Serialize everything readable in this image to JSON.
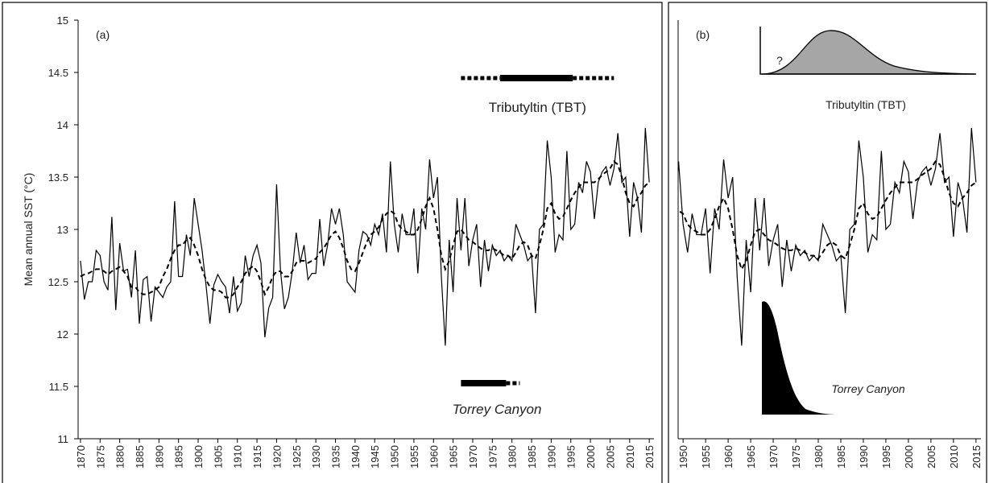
{
  "chart_data": [
    {
      "type": "line",
      "title": "(a)",
      "y_label": "Mean annual SST (°C)",
      "x": [
        1870,
        1871,
        1872,
        1873,
        1874,
        1875,
        1876,
        1877,
        1878,
        1879,
        1880,
        1881,
        1882,
        1883,
        1884,
        1885,
        1886,
        1887,
        1888,
        1889,
        1890,
        1891,
        1892,
        1893,
        1894,
        1895,
        1896,
        1897,
        1898,
        1899,
        1900,
        1901,
        1902,
        1903,
        1904,
        1905,
        1906,
        1907,
        1908,
        1909,
        1910,
        1911,
        1912,
        1913,
        1914,
        1915,
        1916,
        1917,
        1918,
        1919,
        1920,
        1921,
        1922,
        1923,
        1924,
        1925,
        1926,
        1927,
        1928,
        1929,
        1930,
        1931,
        1932,
        1933,
        1934,
        1935,
        1936,
        1937,
        1938,
        1939,
        1940,
        1941,
        1942,
        1943,
        1944,
        1945,
        1946,
        1947,
        1948,
        1949,
        1950,
        1951,
        1952,
        1953,
        1954,
        1955,
        1956,
        1957,
        1958,
        1959,
        1960,
        1961,
        1962,
        1963,
        1964,
        1965,
        1966,
        1967,
        1968,
        1969,
        1970,
        1971,
        1972,
        1973,
        1974,
        1975,
        1976,
        1977,
        1978,
        1979,
        1980,
        1981,
        1982,
        1983,
        1984,
        1985,
        1986,
        1987,
        1988,
        1989,
        1990,
        1991,
        1992,
        1993,
        1994,
        1995,
        1996,
        1997,
        1998,
        1999,
        2000,
        2001,
        2002,
        2003,
        2004,
        2005,
        2006,
        2007,
        2008,
        2009,
        2010,
        2011,
        2012,
        2013,
        2014,
        2015
      ],
      "series": [
        {
          "color": "#000000",
          "style": "solid",
          "values": [
            12.7,
            12.33,
            12.5,
            12.5,
            12.8,
            12.75,
            12.5,
            12.42,
            13.12,
            12.23,
            12.87,
            12.6,
            12.62,
            12.35,
            12.8,
            12.1,
            12.52,
            12.55,
            12.12,
            12.45,
            12.4,
            12.35,
            12.45,
            12.5,
            13.27,
            12.55,
            12.55,
            12.95,
            12.75,
            13.3,
            13.05,
            12.8,
            12.47,
            12.1,
            12.47,
            12.57,
            12.5,
            12.45,
            12.2,
            12.55,
            12.22,
            12.3,
            12.75,
            12.55,
            12.75,
            12.85,
            12.68,
            11.97,
            12.25,
            12.35,
            13.43,
            12.6,
            12.24,
            12.35,
            12.6,
            12.97,
            12.68,
            12.85,
            12.52,
            12.58,
            12.58,
            13.1,
            12.65,
            12.85,
            13.2,
            13.05,
            13.2,
            12.95,
            12.5,
            12.45,
            12.4,
            12.8,
            12.98,
            12.95,
            12.85,
            13.05,
            12.95,
            13.15,
            12.78,
            13.65,
            13.05,
            12.78,
            13.15,
            12.95,
            12.95,
            13.2,
            12.58,
            13.2,
            13.0,
            13.67,
            13.3,
            13.5,
            12.55,
            11.89,
            12.9,
            12.4,
            13.3,
            12.8,
            13.3,
            12.65,
            12.9,
            13.05,
            12.45,
            12.9,
            12.6,
            12.85,
            12.75,
            12.8,
            12.7,
            12.75,
            12.7,
            13.05,
            12.95,
            12.85,
            12.7,
            12.75,
            12.2,
            13.0,
            13.05,
            13.85,
            13.5,
            12.78,
            12.95,
            12.9,
            13.75,
            13.0,
            13.05,
            13.45,
            13.35,
            13.65,
            13.55,
            13.1,
            13.45,
            13.55,
            13.6,
            13.42,
            13.58,
            13.92,
            13.45,
            13.5,
            12.93,
            13.45,
            13.3,
            12.97,
            13.97,
            13.45
          ]
        },
        {
          "color": "#000000",
          "style": "dashed",
          "values": [
            12.55,
            12.57,
            12.58,
            12.6,
            12.62,
            12.62,
            12.6,
            12.57,
            12.6,
            12.62,
            12.64,
            12.6,
            12.55,
            12.45,
            12.45,
            12.4,
            12.38,
            12.38,
            12.4,
            12.42,
            12.45,
            12.55,
            12.62,
            12.72,
            12.8,
            12.85,
            12.85,
            12.9,
            12.92,
            12.85,
            12.75,
            12.62,
            12.52,
            12.45,
            12.42,
            12.42,
            12.4,
            12.35,
            12.35,
            12.38,
            12.45,
            12.5,
            12.58,
            12.62,
            12.65,
            12.6,
            12.5,
            12.38,
            12.45,
            12.55,
            12.6,
            12.6,
            12.55,
            12.55,
            12.6,
            12.68,
            12.7,
            12.7,
            12.68,
            12.7,
            12.72,
            12.78,
            12.82,
            12.88,
            12.95,
            12.98,
            12.92,
            12.82,
            12.7,
            12.62,
            12.6,
            12.68,
            12.78,
            12.88,
            12.95,
            12.98,
            13.02,
            13.1,
            13.15,
            13.18,
            13.15,
            13.05,
            13.0,
            12.98,
            12.95,
            12.95,
            13.0,
            13.1,
            13.22,
            13.3,
            13.2,
            13.0,
            12.75,
            12.62,
            12.7,
            12.85,
            12.98,
            13.0,
            12.95,
            12.9,
            12.88,
            12.85,
            12.82,
            12.8,
            12.8,
            12.82,
            12.8,
            12.78,
            12.75,
            12.75,
            12.72,
            12.78,
            12.85,
            12.88,
            12.85,
            12.75,
            12.72,
            12.85,
            13.0,
            13.2,
            13.25,
            13.15,
            13.1,
            13.12,
            13.2,
            13.28,
            13.35,
            13.4,
            13.45,
            13.45,
            13.45,
            13.45,
            13.48,
            13.52,
            13.55,
            13.58,
            13.65,
            13.62,
            13.5,
            13.35,
            13.25,
            13.22,
            13.3,
            13.35,
            13.42,
            13.45
          ]
        }
      ],
      "xlim": [
        1869.4,
        2016.2
      ],
      "xticks": [
        1870,
        1875,
        1880,
        1885,
        1890,
        1895,
        1900,
        1905,
        1910,
        1915,
        1920,
        1925,
        1930,
        1935,
        1940,
        1945,
        1950,
        1955,
        1960,
        1965,
        1970,
        1975,
        1980,
        1985,
        1990,
        1995,
        2000,
        2005,
        2010,
        2015
      ],
      "ylim": [
        11,
        15
      ],
      "yticks": [
        11,
        11.5,
        12,
        12.5,
        13,
        13.5,
        14,
        14.5,
        15
      ],
      "annotations": [
        {
          "text": "Tributyltin (TBT)",
          "segments": [
            {
              "style": "dotted",
              "range": [
                1967,
                1977
              ]
            },
            {
              "style": "solid",
              "range": [
                1977,
                1995.5
              ]
            },
            {
              "style": "dotted",
              "range": [
                1995.5,
                2006
              ]
            }
          ]
        },
        {
          "text": "Torrey Canyon",
          "segments": [
            {
              "style": "solid",
              "range": [
                1967,
                1978.5
              ]
            },
            {
              "style": "dotted",
              "range": [
                1978.5,
                1982
              ]
            }
          ]
        }
      ]
    },
    {
      "type": "line",
      "title": "(b)",
      "xlim": [
        1948.9,
        2016.1
      ],
      "xticks": [
        1950,
        1955,
        1960,
        1965,
        1970,
        1975,
        1980,
        1985,
        1990,
        1995,
        2000,
        2005,
        2010,
        2015
      ],
      "ylim": [
        11,
        15
      ],
      "annotations": [
        {
          "text": "?"
        },
        {
          "text": "Tributyltin (TBT)"
        },
        {
          "text": "Torrey Canyon"
        }
      ]
    }
  ]
}
